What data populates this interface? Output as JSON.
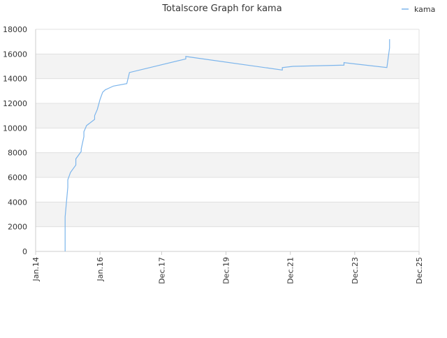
{
  "chart_data": {
    "type": "line",
    "title": "Totalscore Graph for kama",
    "x": [
      "2014-12",
      "2014-12",
      "2015-01",
      "2015-01",
      "2015-02",
      "2015-04",
      "2015-04",
      "2015-06",
      "2015-06",
      "2015-07",
      "2015-07",
      "2015-08",
      "2015-11",
      "2015-11",
      "2015-12",
      "2016-01",
      "2016-02",
      "2016-03",
      "2016-06",
      "2016-11",
      "2016-11",
      "2016-12",
      "2018-09",
      "2018-09",
      "2021-09",
      "2021-09",
      "2022-01",
      "2023-08",
      "2023-08",
      "2024-12",
      "2025-01",
      "2025-01"
    ],
    "series": [
      {
        "name": "kama",
        "color": "#7cb5ec",
        "values": [
          0,
          2800,
          5200,
          5800,
          6400,
          7000,
          7500,
          8100,
          8300,
          9300,
          9700,
          10200,
          10700,
          11000,
          11500,
          12300,
          12900,
          13100,
          13400,
          13600,
          13600,
          14500,
          15600,
          15800,
          14700,
          14900,
          15000,
          15100,
          15300,
          14900,
          16500,
          17200
        ]
      }
    ],
    "xlim": [
      "2014-01",
      "2025-12"
    ],
    "xticks": [
      {
        "value": "2014-01",
        "label": "Jan.14"
      },
      {
        "value": "2016-01",
        "label": "Jan.16"
      },
      {
        "value": "2017-12",
        "label": "Dec.17"
      },
      {
        "value": "2019-12",
        "label": "Dec.19"
      },
      {
        "value": "2021-12",
        "label": "Dec.21"
      },
      {
        "value": "2023-12",
        "label": "Dec.23"
      },
      {
        "value": "2025-12",
        "label": "Dec.25"
      }
    ],
    "ylim": [
      0,
      18000
    ],
    "yticks": [
      0,
      2000,
      4000,
      6000,
      8000,
      10000,
      12000,
      14000,
      16000,
      18000
    ],
    "grid": true,
    "legend": "top-right"
  }
}
